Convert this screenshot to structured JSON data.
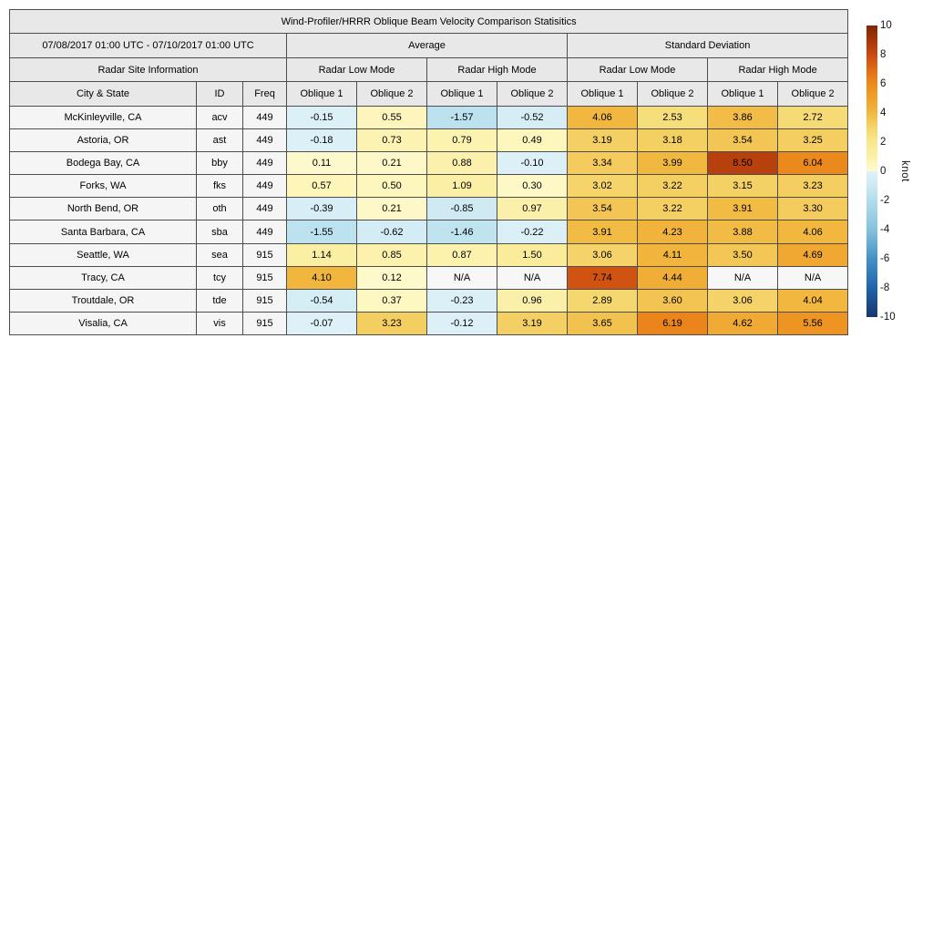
{
  "chart_data": {
    "type": "heatmap-table",
    "title": "Wind-Profiler/HRRR Oblique Beam Velocity Comparison Statisitics",
    "period": "07/08/2017 01:00 UTC - 07/10/2017 01:00 UTC",
    "header": {
      "site_info": "Radar Site Information",
      "average": "Average",
      "std_dev": "Standard Deviation",
      "avg_low_mode": "Radar Low Mode",
      "avg_high_mode": "Radar High Mode",
      "std_low_mode": "Radar Low Mode",
      "std_high_mode": "Radar High Mode",
      "columns": [
        "City & State",
        "ID",
        "Freq",
        "Oblique 1",
        "Oblique 2",
        "Oblique 1",
        "Oblique 2",
        "Oblique 1",
        "Oblique 2",
        "Oblique 1",
        "Oblique 2"
      ]
    },
    "na_label": "N/A",
    "rows": [
      {
        "city": "McKinleyville, CA",
        "id": "acv",
        "freq": "449",
        "values": [
          "-0.15",
          "0.55",
          "-1.57",
          "-0.52",
          "4.06",
          "2.53",
          "3.86",
          "2.72"
        ]
      },
      {
        "city": "Astoria, OR",
        "id": "ast",
        "freq": "449",
        "values": [
          "-0.18",
          "0.73",
          "0.79",
          "0.49",
          "3.19",
          "3.18",
          "3.54",
          "3.25"
        ]
      },
      {
        "city": "Bodega Bay, CA",
        "id": "bby",
        "freq": "449",
        "values": [
          "0.11",
          "0.21",
          "0.88",
          "-0.10",
          "3.34",
          "3.99",
          "8.50",
          "6.04"
        ]
      },
      {
        "city": "Forks, WA",
        "id": "fks",
        "freq": "449",
        "values": [
          "0.57",
          "0.50",
          "1.09",
          "0.30",
          "3.02",
          "3.22",
          "3.15",
          "3.23"
        ]
      },
      {
        "city": "North Bend, OR",
        "id": "oth",
        "freq": "449",
        "values": [
          "-0.39",
          "0.21",
          "-0.85",
          "0.97",
          "3.54",
          "3.22",
          "3.91",
          "3.30"
        ]
      },
      {
        "city": "Santa Barbara, CA",
        "id": "sba",
        "freq": "449",
        "values": [
          "-1.55",
          "-0.62",
          "-1.46",
          "-0.22",
          "3.91",
          "4.23",
          "3.88",
          "4.06"
        ]
      },
      {
        "city": "Seattle, WA",
        "id": "sea",
        "freq": "915",
        "values": [
          "1.14",
          "0.85",
          "0.87",
          "1.50",
          "3.06",
          "4.11",
          "3.50",
          "4.69"
        ]
      },
      {
        "city": "Tracy, CA",
        "id": "tcy",
        "freq": "915",
        "values": [
          "4.10",
          "0.12",
          "N/A",
          "N/A",
          "7.74",
          "4.44",
          "N/A",
          "N/A"
        ]
      },
      {
        "city": "Troutdale, OR",
        "id": "tde",
        "freq": "915",
        "values": [
          "-0.54",
          "0.37",
          "-0.23",
          "0.96",
          "2.89",
          "3.60",
          "3.06",
          "4.04"
        ]
      },
      {
        "city": "Visalia, CA",
        "id": "vis",
        "freq": "915",
        "values": [
          "-0.07",
          "3.23",
          "-0.12",
          "3.19",
          "3.65",
          "6.19",
          "4.62",
          "5.56"
        ]
      }
    ],
    "colorbar": {
      "unit": "knot",
      "min": -10,
      "max": 10,
      "ticks": [
        "10",
        "8",
        "6",
        "4",
        "2",
        "0",
        "-2",
        "-4",
        "-6",
        "-8",
        "-10"
      ]
    },
    "colormap": {
      "na_color": "#f7f7f7",
      "stops": [
        [
          -10,
          "#17356e"
        ],
        [
          -8,
          "#2064ab"
        ],
        [
          -6,
          "#4292c6"
        ],
        [
          -4,
          "#86c2dd"
        ],
        [
          -2,
          "#b0ddec"
        ],
        [
          -1,
          "#cde9f3"
        ],
        [
          -0.01,
          "#dff1f8"
        ],
        [
          0,
          "#fefad0"
        ],
        [
          0.5,
          "#fdf6bd"
        ],
        [
          1,
          "#fbf0a8"
        ],
        [
          2,
          "#f8e88e"
        ],
        [
          3,
          "#f5d56b"
        ],
        [
          4,
          "#f1b840"
        ],
        [
          5,
          "#efa12b"
        ],
        [
          6,
          "#ed8a1d"
        ],
        [
          7,
          "#e06c15"
        ],
        [
          8,
          "#ca4a10"
        ],
        [
          9,
          "#a53607"
        ],
        [
          10,
          "#7f2704"
        ]
      ]
    }
  }
}
